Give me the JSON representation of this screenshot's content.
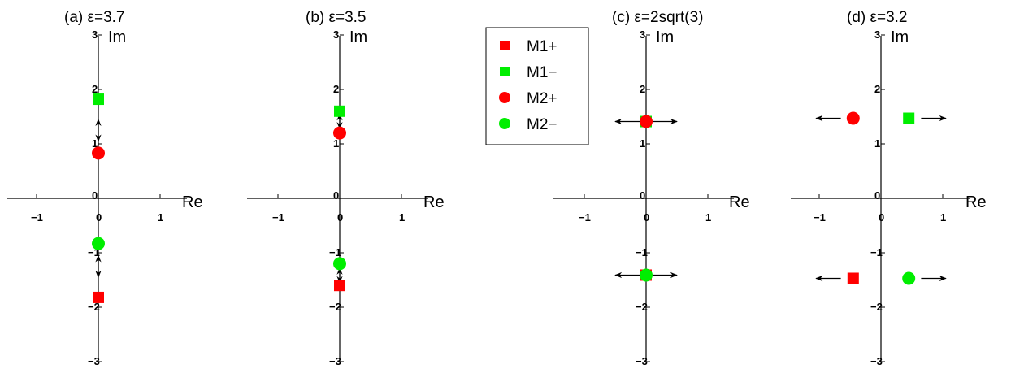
{
  "colors": {
    "plus": "#ff0000",
    "minus": "#00ee00",
    "axis": "#000000",
    "arrow": "#000000"
  },
  "legend": {
    "entries": [
      {
        "label": "M1+",
        "color": "#ff0000",
        "marker": "square"
      },
      {
        "label": "M1−",
        "color": "#00ee00",
        "marker": "square"
      },
      {
        "label": "M2+",
        "color": "#ff0000",
        "marker": "circle"
      },
      {
        "label": "M2−",
        "color": "#00ee00",
        "marker": "circle"
      }
    ]
  },
  "chart_data": [
    {
      "type": "scatter",
      "title": "(a) ε=3.7",
      "xlabel": "Re",
      "ylabel": "Im",
      "xlim": [
        -1.5,
        1.5
      ],
      "ylim": [
        -3,
        3
      ],
      "xticks": [
        {
          "v": -1,
          "label": "−1"
        },
        {
          "v": 0,
          "label": "0"
        },
        {
          "v": 1,
          "label": "1"
        }
      ],
      "yticks": [
        {
          "v": -3,
          "label": "−3"
        },
        {
          "v": -2,
          "label": "−2"
        },
        {
          "v": -1,
          "label": "−1"
        },
        {
          "v": 0,
          "label": "0"
        },
        {
          "v": 1,
          "label": "1"
        },
        {
          "v": 2,
          "label": "2"
        },
        {
          "v": 3,
          "label": "3"
        }
      ],
      "series": [
        {
          "name": "M1+",
          "marker": "square",
          "color": "#ff0000",
          "x": [
            0
          ],
          "y": [
            -1.82
          ]
        },
        {
          "name": "M1−",
          "marker": "square",
          "color": "#00ee00",
          "x": [
            0
          ],
          "y": [
            1.82
          ]
        },
        {
          "name": "M2+",
          "marker": "circle",
          "color": "#ff0000",
          "x": [
            0
          ],
          "y": [
            0.83
          ]
        },
        {
          "name": "M2−",
          "marker": "circle",
          "color": "#00ee00",
          "x": [
            0
          ],
          "y": [
            -0.83
          ]
        }
      ],
      "arrows": [
        {
          "from": [
            0,
            1.25
          ],
          "to": [
            0,
            1.45
          ]
        },
        {
          "from": [
            0,
            1.25
          ],
          "to": [
            0,
            1.05
          ]
        },
        {
          "from": [
            0,
            -1.25
          ],
          "to": [
            0,
            -1.05
          ]
        },
        {
          "from": [
            0,
            -1.25
          ],
          "to": [
            0,
            -1.45
          ]
        }
      ]
    },
    {
      "type": "scatter",
      "title": "(b) ε=3.5",
      "xlabel": "Re",
      "ylabel": "Im",
      "xlim": [
        -1.5,
        1.5
      ],
      "ylim": [
        -3,
        3
      ],
      "xticks": [
        {
          "v": -1,
          "label": "−1"
        },
        {
          "v": 0,
          "label": "0"
        },
        {
          "v": 1,
          "label": "1"
        }
      ],
      "yticks": [
        {
          "v": -3,
          "label": "−3"
        },
        {
          "v": -2,
          "label": "−2"
        },
        {
          "v": -1,
          "label": "−1"
        },
        {
          "v": 0,
          "label": "0"
        },
        {
          "v": 1,
          "label": "1"
        },
        {
          "v": 2,
          "label": "2"
        },
        {
          "v": 3,
          "label": "3"
        }
      ],
      "series": [
        {
          "name": "M1+",
          "marker": "square",
          "color": "#ff0000",
          "x": [
            0
          ],
          "y": [
            -1.6
          ]
        },
        {
          "name": "M1−",
          "marker": "square",
          "color": "#00ee00",
          "x": [
            0
          ],
          "y": [
            1.6
          ]
        },
        {
          "name": "M2+",
          "marker": "circle",
          "color": "#ff0000",
          "x": [
            0
          ],
          "y": [
            1.2
          ]
        },
        {
          "name": "M2−",
          "marker": "circle",
          "color": "#00ee00",
          "x": [
            0
          ],
          "y": [
            -1.2
          ]
        }
      ],
      "arrows": [
        {
          "from": [
            0,
            1.42
          ],
          "to": [
            0,
            1.55
          ]
        },
        {
          "from": [
            0,
            1.42
          ],
          "to": [
            0,
            1.28
          ]
        },
        {
          "from": [
            0,
            -1.42
          ],
          "to": [
            0,
            -1.28
          ]
        },
        {
          "from": [
            0,
            -1.42
          ],
          "to": [
            0,
            -1.55
          ]
        }
      ]
    },
    {
      "type": "scatter",
      "title": "(c) ε=2sqrt(3)",
      "xlabel": "Re",
      "ylabel": "Im",
      "xlim": [
        -1.5,
        1.5
      ],
      "ylim": [
        -3,
        3
      ],
      "xticks": [
        {
          "v": -1,
          "label": "−1"
        },
        {
          "v": 0,
          "label": "0"
        },
        {
          "v": 1,
          "label": "1"
        }
      ],
      "yticks": [
        {
          "v": -3,
          "label": "−3"
        },
        {
          "v": -2,
          "label": "−2"
        },
        {
          "v": -1,
          "label": "−1"
        },
        {
          "v": 0,
          "label": "0"
        },
        {
          "v": 1,
          "label": "1"
        },
        {
          "v": 2,
          "label": "2"
        },
        {
          "v": 3,
          "label": "3"
        }
      ],
      "series": [
        {
          "name": "M1+",
          "marker": "square",
          "color": "#ff0000",
          "x": [
            0
          ],
          "y": [
            -1.41
          ]
        },
        {
          "name": "M1−",
          "marker": "square",
          "color": "#00ee00",
          "x": [
            0
          ],
          "y": [
            1.41
          ]
        },
        {
          "name": "M2+",
          "marker": "circle",
          "color": "#ff0000",
          "x": [
            0
          ],
          "y": [
            1.41
          ]
        },
        {
          "name": "M2−",
          "marker": "circle",
          "color": "#00ee00",
          "x": [
            0
          ],
          "y": [
            -1.41
          ]
        }
      ],
      "arrows": [
        {
          "from": [
            -0.1,
            1.41
          ],
          "to": [
            -0.5,
            1.41
          ]
        },
        {
          "from": [
            0.1,
            1.41
          ],
          "to": [
            0.5,
            1.41
          ]
        },
        {
          "from": [
            -0.1,
            -1.41
          ],
          "to": [
            -0.5,
            -1.41
          ]
        },
        {
          "from": [
            0.1,
            -1.41
          ],
          "to": [
            0.5,
            -1.41
          ]
        }
      ]
    },
    {
      "type": "scatter",
      "title": "(d) ε=3.2",
      "xlabel": "Re",
      "ylabel": "Im",
      "xlim": [
        -1.5,
        1.5
      ],
      "ylim": [
        -3,
        3
      ],
      "xticks": [
        {
          "v": -1,
          "label": "−1"
        },
        {
          "v": 0,
          "label": "0"
        },
        {
          "v": 1,
          "label": "1"
        }
      ],
      "yticks": [
        {
          "v": -3,
          "label": "−3"
        },
        {
          "v": -2,
          "label": "−2"
        },
        {
          "v": -1,
          "label": "−1"
        },
        {
          "v": 0,
          "label": "0"
        },
        {
          "v": 1,
          "label": "1"
        },
        {
          "v": 2,
          "label": "2"
        },
        {
          "v": 3,
          "label": "3"
        }
      ],
      "series": [
        {
          "name": "M1+",
          "marker": "square",
          "color": "#ff0000",
          "x": [
            -0.45
          ],
          "y": [
            -1.47
          ]
        },
        {
          "name": "M1−",
          "marker": "square",
          "color": "#00ee00",
          "x": [
            0.45
          ],
          "y": [
            1.47
          ]
        },
        {
          "name": "M2+",
          "marker": "circle",
          "color": "#ff0000",
          "x": [
            -0.45
          ],
          "y": [
            1.47
          ]
        },
        {
          "name": "M2−",
          "marker": "circle",
          "color": "#00ee00",
          "x": [
            0.45
          ],
          "y": [
            -1.47
          ]
        }
      ],
      "arrows": [
        {
          "from": [
            -0.65,
            1.47
          ],
          "to": [
            -1.05,
            1.47
          ]
        },
        {
          "from": [
            0.65,
            1.47
          ],
          "to": [
            1.05,
            1.47
          ]
        },
        {
          "from": [
            -0.65,
            -1.47
          ],
          "to": [
            -1.05,
            -1.47
          ]
        },
        {
          "from": [
            0.65,
            -1.47
          ],
          "to": [
            1.05,
            -1.47
          ]
        }
      ]
    }
  ]
}
